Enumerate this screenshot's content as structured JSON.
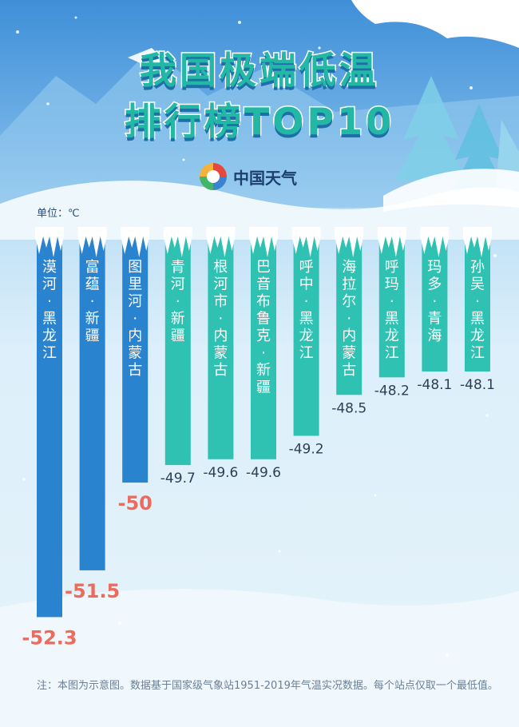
{
  "header": {
    "title_line1": "我国极端低温",
    "title_line2": "排行榜TOP10",
    "logo_text": "中国天气"
  },
  "unit_label": "单位：℃",
  "note": "注：本图为示意图。数据基于国家级气象站1951-2019年气温实况数据。每个站点仅取一个最低值。",
  "colors": {
    "bar_blue": "#2a83cf",
    "bar_teal": "#2fc1b1",
    "value_red": "#ee6a5c",
    "value_dark": "#2b3f55"
  },
  "chart_data": {
    "type": "bar",
    "orientation": "vertical-down",
    "categories": [
      "漠河·黑龙江",
      "富蕴·新疆",
      "图里河·内蒙古",
      "青河·新疆",
      "根河市·内蒙古",
      "巴音布鲁克·新疆",
      "呼中·黑龙江",
      "海拉尔·内蒙古",
      "呼玛·黑龙江",
      "玛多·青海",
      "孙吴·黑龙江"
    ],
    "values": [
      -52.3,
      -51.5,
      -50,
      -49.7,
      -49.6,
      -49.6,
      -49.2,
      -48.5,
      -48.2,
      -48.1,
      -48.1
    ],
    "value_labels": [
      "-52.3",
      "-51.5",
      "-50",
      "-49.7",
      "-49.6",
      "-49.6",
      "-49.2",
      "-48.5",
      "-48.2",
      "-48.1",
      "-48.1"
    ],
    "highlight_count": 3,
    "xlabel": "",
    "ylabel": "",
    "grid": false
  }
}
